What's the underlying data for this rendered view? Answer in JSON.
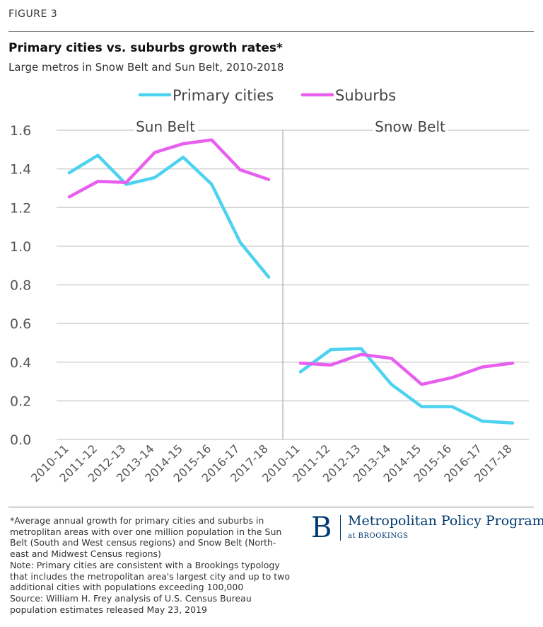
{
  "figure_label": "FIGURE 3",
  "title": "Primary cities vs. suburbs growth rates*",
  "subtitle": "Large metros in Snow Belt and Sun Belt, 2010-2018",
  "colors": {
    "primary_cities": "#4dd2f0",
    "suburbs": "#e85ff0",
    "grid": "#d0d0d0",
    "axis_text": "#555555",
    "brand": "#003a70"
  },
  "chart_data": {
    "type": "line",
    "ylim": [
      0,
      1.6
    ],
    "yticks": [
      "0.0",
      "0.2",
      "0.4",
      "0.6",
      "0.8",
      "1.0",
      "1.2",
      "1.4",
      "1.6"
    ],
    "ytick_values": [
      0,
      0.2,
      0.4,
      0.6,
      0.8,
      1.0,
      1.2,
      1.4,
      1.6
    ],
    "legend": [
      "Primary cities",
      "Suburbs"
    ],
    "legend_position": "top-center",
    "grid": true,
    "panels": [
      {
        "name": "Sun Belt",
        "categories": [
          "2010-11",
          "2011-12",
          "2012-13",
          "2013-14",
          "2014-15",
          "2015-16",
          "2016-17",
          "2017-18"
        ],
        "series": [
          {
            "name": "Primary cities",
            "values": [
              1.38,
              1.47,
              1.32,
              1.355,
              1.46,
              1.32,
              1.02,
              0.84
            ]
          },
          {
            "name": "Suburbs",
            "values": [
              1.255,
              1.335,
              1.33,
              1.485,
              1.53,
              1.55,
              1.395,
              1.345
            ]
          }
        ]
      },
      {
        "name": "Snow Belt",
        "categories": [
          "2010-11",
          "2011-12",
          "2012-13",
          "2013-14",
          "2014-15",
          "2015-16",
          "2016-17",
          "2017-18"
        ],
        "series": [
          {
            "name": "Primary cities",
            "values": [
              0.35,
              0.465,
              0.47,
              0.285,
              0.17,
              0.17,
              0.095,
              0.085
            ]
          },
          {
            "name": "Suburbs",
            "values": [
              0.395,
              0.385,
              0.44,
              0.42,
              0.285,
              0.32,
              0.375,
              0.395
            ]
          }
        ]
      }
    ]
  },
  "footnote": {
    "lines": [
      "*Average annual growth for primary cities and suburbs in",
      "metroplitan areas with over one million population in the Sun",
      "Belt (South and West census regions) and Snow Belt (North-",
      "east and Midwest Census regions)",
      "Note: Primary cities are consistent with a Brookings typology",
      "that includes the metropolitan area's largest city and up to two",
      "additional cities with populations exceeding 100,000",
      "Source: William H. Frey analysis of U.S. Census Bureau",
      "population estimates released May 23, 2019"
    ]
  },
  "logo": {
    "mark": "B",
    "name": "Metropolitan Policy Program",
    "sub": "at BROOKINGS"
  }
}
